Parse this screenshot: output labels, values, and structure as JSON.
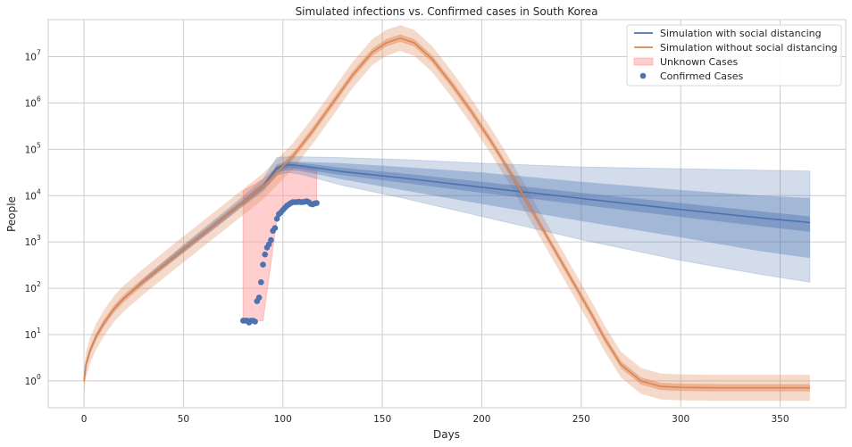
{
  "chart_data": {
    "type": "line",
    "title": "Simulated infections vs. Confirmed cases in South Korea",
    "xlabel": "Days",
    "ylabel": "People",
    "yscale": "log",
    "xlim": [
      -18,
      383
    ],
    "ylim_log10": [
      -0.58,
      7.8
    ],
    "grid": true,
    "legend_position": "top-right",
    "x_ticks": [
      0,
      50,
      100,
      150,
      200,
      250,
      300,
      350
    ],
    "y_ticks": [
      {
        "exp": 0,
        "label": "10",
        "sup": "0"
      },
      {
        "exp": 1,
        "label": "10",
        "sup": "1"
      },
      {
        "exp": 2,
        "label": "10",
        "sup": "2"
      },
      {
        "exp": 3,
        "label": "10",
        "sup": "3"
      },
      {
        "exp": 4,
        "label": "10",
        "sup": "4"
      },
      {
        "exp": 5,
        "label": "10",
        "sup": "5"
      },
      {
        "exp": 6,
        "label": "10",
        "sup": "6"
      },
      {
        "exp": 7,
        "label": "10",
        "sup": "7"
      }
    ],
    "colors": {
      "with_sd": "#4c72b0",
      "without_sd": "#dd8452",
      "unknown": "#ff9d9d",
      "confirmed": "#4c72b0"
    },
    "legend": [
      {
        "label": "Simulation with social distancing",
        "kind": "line",
        "color": "#4c72b0"
      },
      {
        "label": "Simulation without social distancing",
        "kind": "line",
        "color": "#dd8452"
      },
      {
        "label": "Unknown Cases",
        "kind": "patch",
        "color": "#ff9d9d"
      },
      {
        "label": "Confirmed Cases",
        "kind": "dot",
        "color": "#4c72b0"
      }
    ],
    "series": [
      {
        "name": "Simulation without social distancing",
        "x": [
          0,
          1,
          3,
          6,
          10,
          15,
          20,
          30,
          40,
          50,
          60,
          70,
          80,
          90,
          97,
          105,
          115,
          125,
          135,
          145,
          152,
          159,
          166,
          175,
          185,
          195,
          205,
          215,
          225,
          235,
          245,
          255,
          262,
          270,
          280,
          290,
          300,
          320,
          340,
          365
        ],
        "log10_median": [
          0,
          0.35,
          0.65,
          0.95,
          1.25,
          1.55,
          1.78,
          2.15,
          2.5,
          2.84,
          3.18,
          3.52,
          3.86,
          4.2,
          4.5,
          4.85,
          5.4,
          6.0,
          6.6,
          7.1,
          7.3,
          7.4,
          7.3,
          6.95,
          6.4,
          5.8,
          5.15,
          4.45,
          3.7,
          2.95,
          2.2,
          1.45,
          0.9,
          0.35,
          0.0,
          -0.12,
          -0.14,
          -0.15,
          -0.15,
          -0.15
        ],
        "band_inner_log10": 0.08,
        "band_outer_log10": 0.28
      },
      {
        "name": "Simulation with social distancing",
        "x": [
          0,
          1,
          3,
          6,
          10,
          15,
          20,
          30,
          40,
          50,
          60,
          70,
          80,
          90,
          97,
          103,
          110,
          130,
          160,
          200,
          250,
          300,
          340,
          365
        ],
        "log10_median": [
          0,
          0.35,
          0.65,
          0.95,
          1.25,
          1.55,
          1.78,
          2.15,
          2.5,
          2.84,
          3.18,
          3.52,
          3.86,
          4.2,
          4.6,
          4.67,
          4.64,
          4.52,
          4.38,
          4.18,
          3.94,
          3.7,
          3.52,
          3.42
        ],
        "band_inner_lo": [
          0,
          0.35,
          0.65,
          0.95,
          1.25,
          1.55,
          1.78,
          2.14,
          2.48,
          2.82,
          3.16,
          3.5,
          3.84,
          4.17,
          4.55,
          4.6,
          4.57,
          4.44,
          4.28,
          4.06,
          3.8,
          3.54,
          3.34,
          3.22
        ],
        "band_inner_hi": [
          0,
          0.35,
          0.65,
          0.95,
          1.25,
          1.55,
          1.78,
          2.16,
          2.52,
          2.86,
          3.2,
          3.54,
          3.88,
          4.22,
          4.64,
          4.72,
          4.7,
          4.6,
          4.48,
          4.3,
          4.06,
          3.84,
          3.66,
          3.55
        ],
        "band_mid_lo": [
          0,
          0.35,
          0.65,
          0.95,
          1.25,
          1.55,
          1.78,
          2.13,
          2.47,
          2.8,
          3.14,
          3.48,
          3.82,
          4.15,
          4.5,
          4.55,
          4.52,
          4.35,
          4.12,
          3.82,
          3.45,
          3.1,
          2.8,
          2.65
        ],
        "band_mid_hi": [
          0,
          0.35,
          0.65,
          0.95,
          1.25,
          1.55,
          1.78,
          2.17,
          2.53,
          2.88,
          3.22,
          3.56,
          3.9,
          4.25,
          4.68,
          4.74,
          4.73,
          4.7,
          4.62,
          4.5,
          4.3,
          4.12,
          4.0,
          3.95
        ],
        "band_outer_lo": [
          0,
          0.35,
          0.65,
          0.95,
          1.25,
          1.55,
          1.78,
          2.12,
          2.45,
          2.78,
          3.11,
          3.44,
          3.78,
          4.1,
          4.45,
          4.5,
          4.45,
          4.22,
          3.95,
          3.55,
          3.05,
          2.6,
          2.3,
          2.13
        ],
        "band_outer_hi": [
          0,
          0.35,
          0.65,
          0.95,
          1.25,
          1.55,
          1.78,
          2.2,
          2.57,
          2.93,
          3.28,
          3.63,
          3.98,
          4.35,
          4.83,
          4.84,
          4.84,
          4.82,
          4.78,
          4.7,
          4.62,
          4.58,
          4.55,
          4.53
        ]
      }
    ],
    "unknown_cases": {
      "x": [
        80,
        90,
        97,
        103,
        110,
        117
      ],
      "log10_upper": [
        4.1,
        4.35,
        4.6,
        4.65,
        4.62,
        4.58
      ],
      "log10_lower": [
        1.3,
        1.3,
        3.5,
        3.8,
        3.86,
        3.85
      ]
    },
    "confirmed_cases": {
      "x": [
        80,
        81,
        82,
        83,
        84,
        85,
        86,
        87,
        88,
        89,
        90,
        91,
        92,
        93,
        94,
        95,
        96,
        97,
        98,
        99,
        100,
        101,
        102,
        103,
        104,
        105,
        106,
        107,
        108,
        109,
        110,
        111,
        112,
        113,
        114,
        115,
        116,
        117
      ],
      "log10": [
        1.3,
        1.3,
        1.3,
        1.26,
        1.3,
        1.3,
        1.28,
        1.72,
        1.8,
        2.13,
        2.51,
        2.73,
        2.88,
        2.95,
        3.04,
        3.24,
        3.3,
        3.5,
        3.6,
        3.64,
        3.69,
        3.74,
        3.78,
        3.81,
        3.84,
        3.86,
        3.86,
        3.86,
        3.87,
        3.86,
        3.86,
        3.87,
        3.88,
        3.86,
        3.82,
        3.81,
        3.83,
        3.84
      ]
    }
  }
}
